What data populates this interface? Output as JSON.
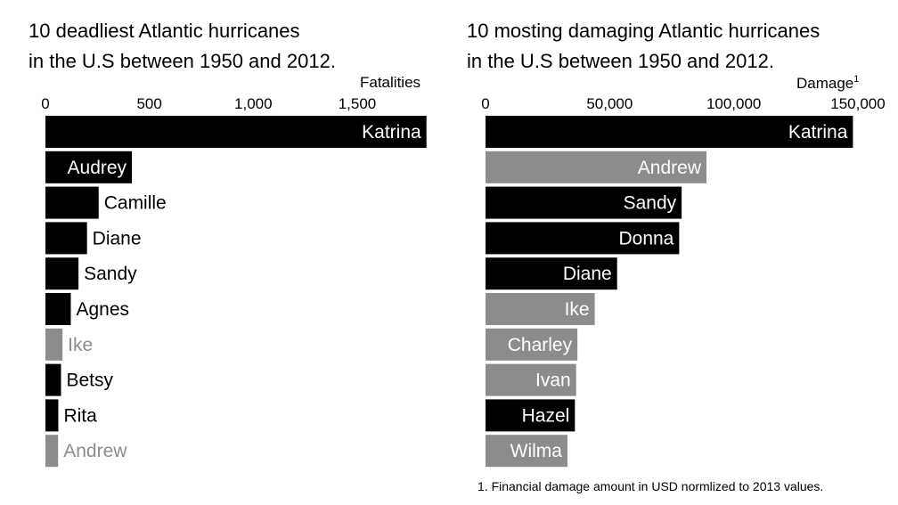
{
  "charts": {
    "left": {
      "title_line1": "10 deadliest Atlantic hurricanes",
      "title_line2": "in the U.S between 1950 and 2012.",
      "metric_label": "Fatalities"
    },
    "right": {
      "title_line1": "10 mosting damaging Atlantic hurricanes",
      "title_line2": "in the U.S between 1950 and 2012.",
      "metric_label": "Damage",
      "metric_footnote_mark": "1"
    }
  },
  "footnote": "1. Financial damage amount in USD normlized to 2013 values.",
  "colors": {
    "primary": "#000000",
    "secondary": "#8c8c8c",
    "label_on_bar": "#ffffff",
    "label_off_bar": "#000000"
  },
  "chart_data": [
    {
      "type": "bar",
      "orientation": "horizontal",
      "title": "10 deadliest Atlantic hurricanes in the U.S between 1950 and 2012.",
      "xlabel": "Fatalities",
      "xlim": [
        0,
        1800
      ],
      "ticks": [
        0,
        500,
        1000,
        1500
      ],
      "tick_labels": [
        "0",
        "500",
        "1,000",
        "1,500"
      ],
      "categories": [
        "Katrina",
        "Audrey",
        "Camille",
        "Diane",
        "Sandy",
        "Agnes",
        "Ike",
        "Betsy",
        "Rita",
        "Andrew"
      ],
      "values": [
        1833,
        416,
        256,
        200,
        159,
        122,
        82,
        75,
        62,
        61
      ],
      "highlight": [
        "primary",
        "primary",
        "primary",
        "primary",
        "primary",
        "primary",
        "secondary",
        "primary",
        "primary",
        "secondary"
      ]
    },
    {
      "type": "bar",
      "orientation": "horizontal",
      "title": "10 mosting damaging Atlantic hurricanes in the U.S between 1950 and 2012.",
      "xlabel": "Damage",
      "xlim": [
        0,
        150000
      ],
      "ticks": [
        0,
        50000,
        100000,
        150000
      ],
      "tick_labels": [
        "0",
        "50,000",
        "100,000",
        "150,000"
      ],
      "categories": [
        "Katrina",
        "Andrew",
        "Sandy",
        "Donna",
        "Diane",
        "Ike",
        "Charley",
        "Ivan",
        "Hazel",
        "Wilma"
      ],
      "values": [
        148000,
        89000,
        79000,
        78000,
        53000,
        44000,
        37000,
        36500,
        36000,
        33000
      ],
      "highlight": [
        "primary",
        "secondary",
        "primary",
        "primary",
        "primary",
        "secondary",
        "secondary",
        "secondary",
        "primary",
        "secondary"
      ]
    }
  ]
}
